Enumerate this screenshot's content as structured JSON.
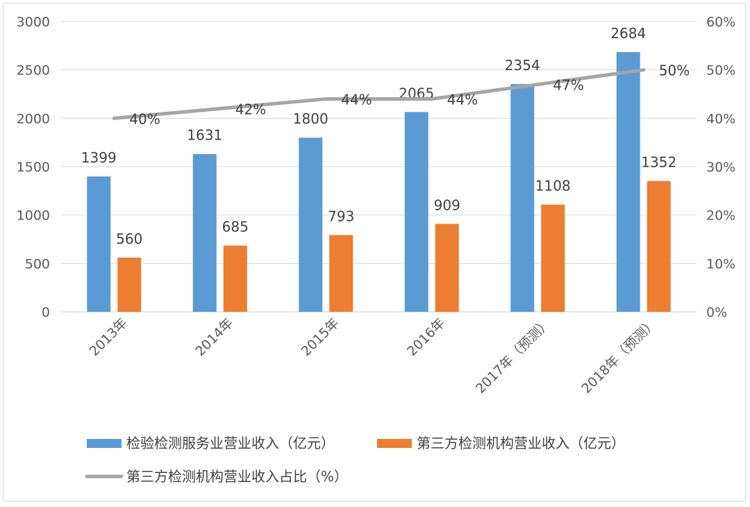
{
  "chart_data": {
    "type": "bar",
    "categories": [
      "2013年",
      "2014年",
      "2015年",
      "2016年",
      "2017年（预测）",
      "2018年（预测）"
    ],
    "series": [
      {
        "name": "检验检测服务业营业收入（亿元）",
        "type": "bar",
        "axis": "left",
        "color": "#5B9BD5",
        "values": [
          1399,
          1631,
          1800,
          2065,
          2354,
          2684
        ],
        "labels": [
          "1399",
          "1631",
          "1800",
          "2065",
          "2354",
          "2684"
        ]
      },
      {
        "name": "第三方检测机构营业收入（亿元）",
        "type": "bar",
        "axis": "left",
        "color": "#ED7D31",
        "values": [
          560,
          685,
          793,
          909,
          1108,
          1352
        ],
        "labels": [
          "560",
          "685",
          "793",
          "909",
          "1108",
          "1352"
        ]
      },
      {
        "name": "第三方检测机构营业收入占比（%）",
        "type": "line",
        "axis": "right",
        "color": "#A5A5A5",
        "values": [
          40,
          42,
          44,
          44,
          47,
          50
        ],
        "labels": [
          "40%",
          "42%",
          "44%",
          "44%",
          "47%",
          "50%"
        ]
      }
    ],
    "y_left": {
      "min": 0,
      "max": 3000,
      "ticks": [
        "0",
        "500",
        "1000",
        "1500",
        "2000",
        "2500",
        "3000"
      ]
    },
    "y_right": {
      "min": 0,
      "max": 60,
      "ticks": [
        "0%",
        "10%",
        "20%",
        "30%",
        "40%",
        "50%",
        "60%"
      ]
    },
    "grid": true,
    "legend_position": "bottom"
  }
}
